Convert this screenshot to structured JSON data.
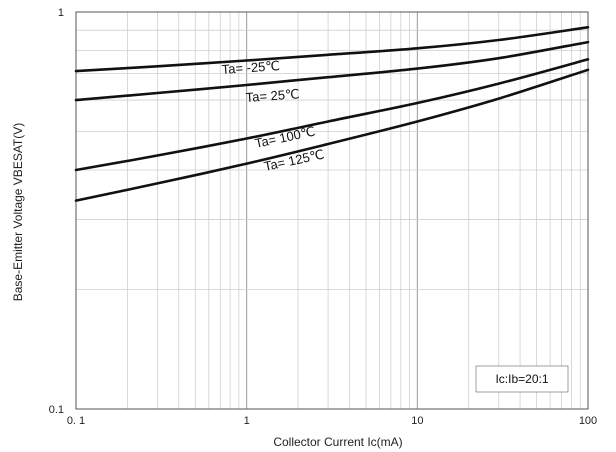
{
  "chart_data": {
    "type": "line",
    "x_scale": "log",
    "y_scale": "log",
    "xlim": [
      0.1,
      100
    ],
    "ylim": [
      0.1,
      1
    ],
    "grid": true,
    "xlabel": "Collector Current   Ic(mA)",
    "ylabel": "Base-Emitter Voltage   VBESAT(V)",
    "x_ticks": [
      "0. 1",
      "1",
      "10",
      "100"
    ],
    "y_ticks": [
      "0.1",
      "1"
    ],
    "annotation": "Ic:Ib=20:1",
    "series": [
      {
        "name": "Ta= -25℃",
        "x": [
          0.1,
          0.3,
          1,
          3,
          10,
          30,
          100
        ],
        "y": [
          0.71,
          0.73,
          0.755,
          0.78,
          0.81,
          0.85,
          0.915
        ]
      },
      {
        "name": "Ta= 25℃",
        "x": [
          0.1,
          0.3,
          1,
          3,
          10,
          30,
          100
        ],
        "y": [
          0.6,
          0.625,
          0.655,
          0.685,
          0.72,
          0.765,
          0.84
        ]
      },
      {
        "name": "Ta= 100℃",
        "x": [
          0.1,
          0.3,
          1,
          3,
          10,
          30,
          100
        ],
        "y": [
          0.4,
          0.435,
          0.48,
          0.53,
          0.59,
          0.66,
          0.76
        ]
      },
      {
        "name": "Ta= 125℃",
        "x": [
          0.1,
          0.3,
          1,
          3,
          10,
          30,
          100
        ],
        "y": [
          0.335,
          0.37,
          0.415,
          0.465,
          0.53,
          0.605,
          0.715
        ]
      }
    ]
  }
}
